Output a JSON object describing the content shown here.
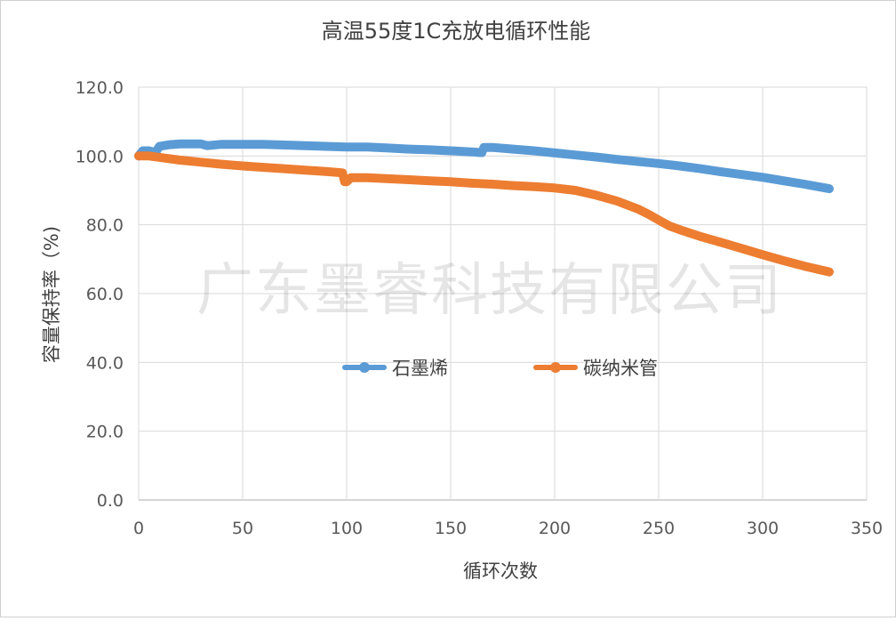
{
  "chart_data": {
    "type": "line",
    "title": "高温55度1C充放电循环性能",
    "xlabel": "循环次数",
    "ylabel": "容量保持率（%)",
    "xlim": [
      0,
      350
    ],
    "ylim": [
      0,
      120
    ],
    "x_ticks": [
      "0",
      "50",
      "100",
      "150",
      "200",
      "250",
      "300",
      "350"
    ],
    "y_ticks": [
      "0.0",
      "20.0",
      "40.0",
      "60.0",
      "80.0",
      "100.0",
      "120.0"
    ],
    "grid": true,
    "legend_position": "center",
    "series": [
      {
        "name": "石墨烯",
        "color": "#5B9BD5",
        "x": [
          0,
          2,
          5,
          8,
          10,
          15,
          20,
          25,
          30,
          33,
          40,
          50,
          60,
          70,
          80,
          90,
          100,
          110,
          120,
          130,
          140,
          150,
          160,
          164,
          165,
          166,
          170,
          180,
          190,
          200,
          210,
          220,
          230,
          240,
          250,
          260,
          270,
          280,
          290,
          300,
          310,
          320,
          332
        ],
        "y": [
          100,
          101.5,
          101.5,
          101,
          102.8,
          103.3,
          103.5,
          103.5,
          103.5,
          103,
          103.4,
          103.4,
          103.4,
          103.2,
          103.0,
          102.8,
          102.6,
          102.6,
          102.3,
          102.0,
          101.8,
          101.5,
          101.2,
          101.0,
          101.0,
          102.5,
          102.5,
          102.0,
          101.5,
          100.9,
          100.3,
          99.7,
          99.0,
          98.4,
          97.8,
          97.1,
          96.3,
          95.4,
          94.6,
          93.8,
          92.8,
          91.8,
          90.5
        ]
      },
      {
        "name": "碳纳米管",
        "color": "#ED7D31",
        "x": [
          0,
          5,
          10,
          20,
          30,
          40,
          50,
          60,
          70,
          80,
          90,
          98,
          99,
          100,
          102,
          110,
          120,
          130,
          140,
          150,
          160,
          170,
          180,
          190,
          200,
          210,
          220,
          230,
          240,
          245,
          250,
          255,
          260,
          270,
          280,
          290,
          300,
          310,
          320,
          332
        ],
        "y": [
          100,
          100,
          99.6,
          98.8,
          98.2,
          97.6,
          97.1,
          96.7,
          96.3,
          95.9,
          95.5,
          95.1,
          92.5,
          92.5,
          93.7,
          93.7,
          93.4,
          93.1,
          92.8,
          92.5,
          92.1,
          91.8,
          91.4,
          91.1,
          90.7,
          90.0,
          88.6,
          86.9,
          84.6,
          83.1,
          81.4,
          79.7,
          78.6,
          76.6,
          74.9,
          73.1,
          71.3,
          69.6,
          68.0,
          66.3
        ]
      }
    ],
    "watermark": "广东墨睿科技有限公司"
  }
}
